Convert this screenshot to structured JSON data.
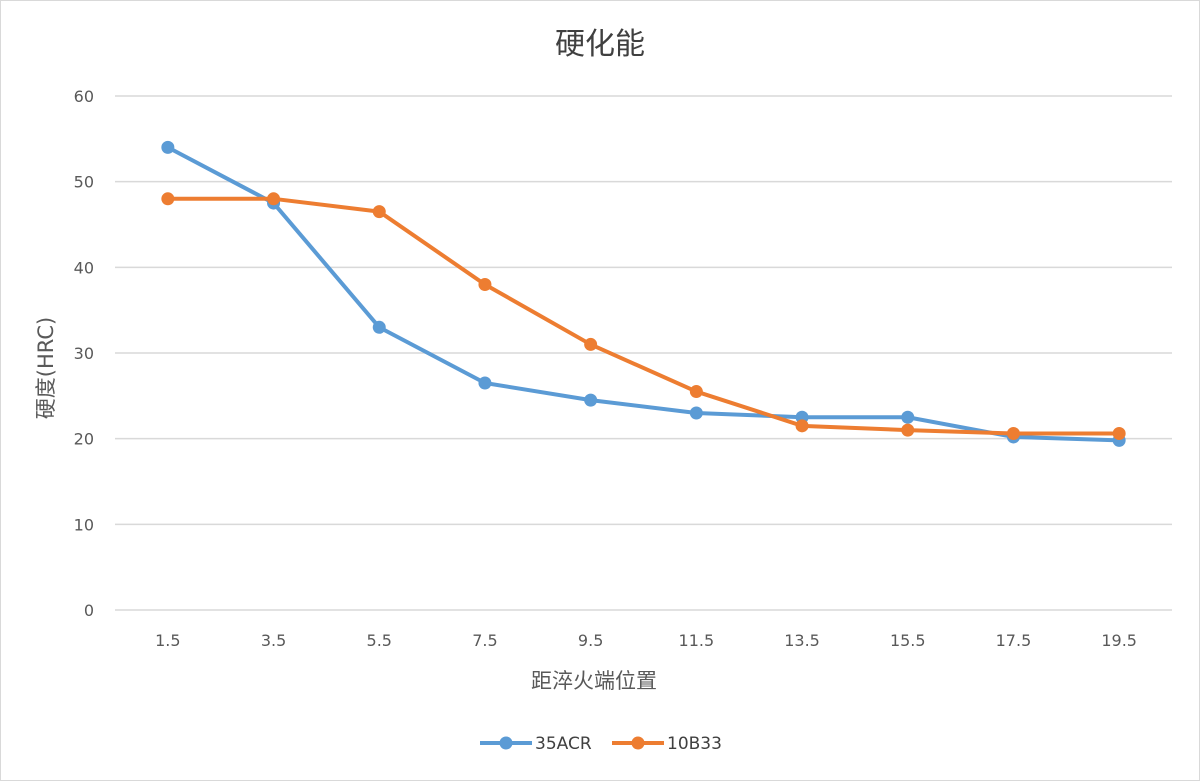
{
  "chart_data": {
    "type": "line",
    "title": "硬化能",
    "xlabel": "距淬火端位置",
    "ylabel": "硬度(HRC)",
    "categories": [
      "1.5",
      "3.5",
      "5.5",
      "7.5",
      "9.5",
      "11.5",
      "13.5",
      "15.5",
      "17.5",
      "19.5"
    ],
    "ylim": [
      0,
      60
    ],
    "yticks": [
      0,
      10,
      20,
      30,
      40,
      50,
      60
    ],
    "grid": true,
    "legend_position": "bottom",
    "series": [
      {
        "name": "35ACR",
        "color": "#5b9bd5",
        "values": [
          54,
          47.5,
          33,
          26.5,
          24.5,
          23,
          22.5,
          22.5,
          20.2,
          19.8
        ]
      },
      {
        "name": "10B33",
        "color": "#ed7d31",
        "values": [
          48,
          48,
          46.5,
          38,
          31,
          25.5,
          21.5,
          21,
          20.6,
          20.6
        ]
      }
    ]
  }
}
